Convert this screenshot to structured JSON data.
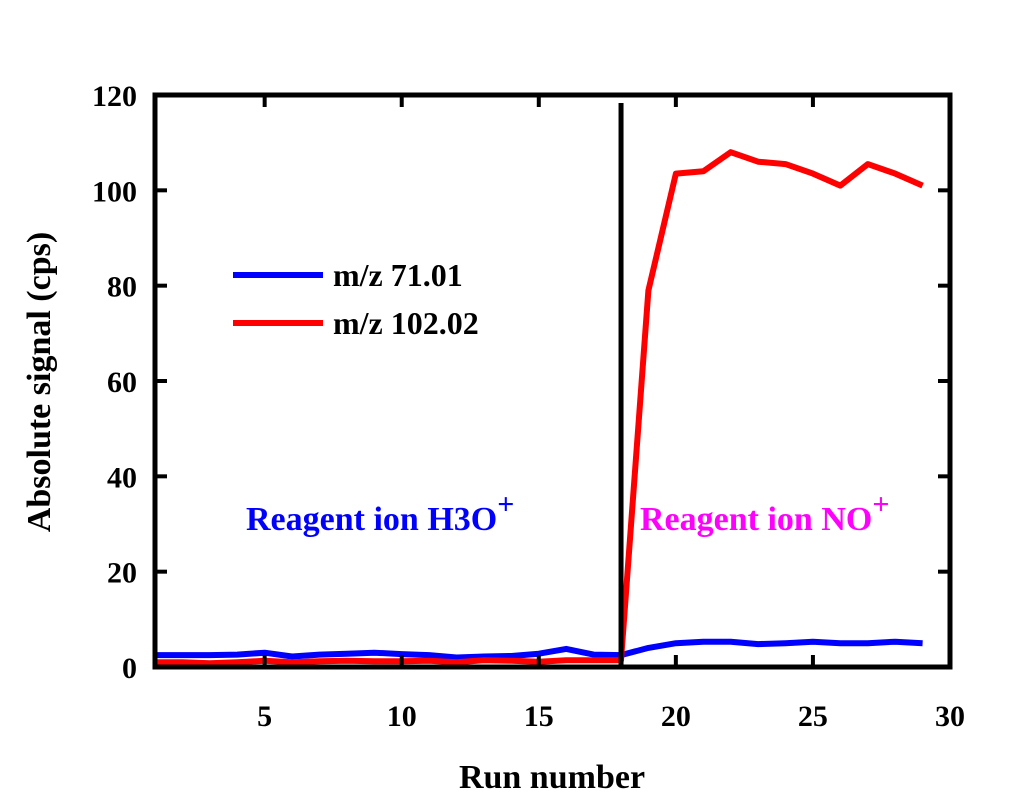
{
  "chart_data": {
    "type": "line",
    "title": "",
    "xlabel": "Run number",
    "ylabel": "Absolute signal (cps)",
    "xlim": [
      1,
      30
    ],
    "ylim": [
      0,
      120
    ],
    "x_ticks": [
      5,
      10,
      15,
      20,
      25,
      30
    ],
    "y_ticks": [
      0,
      20,
      40,
      60,
      80,
      100,
      120
    ],
    "grid": false,
    "legend_position": "upper-left",
    "colors": {
      "series_blue": "#0000ff",
      "series_red": "#ff0000",
      "divider": "#000000",
      "reagent_h3o": "#0000ff",
      "reagent_no": "#ff00ff"
    },
    "x": [
      1,
      2,
      3,
      4,
      5,
      6,
      7,
      8,
      9,
      10,
      11,
      12,
      13,
      14,
      15,
      16,
      17,
      18,
      19,
      20,
      21,
      22,
      23,
      24,
      25,
      26,
      27,
      28,
      29
    ],
    "series": [
      {
        "name": "m/z 71.01",
        "color": "#0000ff",
        "values": [
          2.5,
          2.5,
          2.5,
          2.6,
          3.0,
          2.2,
          2.6,
          2.8,
          3.0,
          2.7,
          2.5,
          2.0,
          2.2,
          2.3,
          2.8,
          3.8,
          2.6,
          2.5,
          4.0,
          5.0,
          5.3,
          5.3,
          4.8,
          5.0,
          5.3,
          5.0,
          5.0,
          5.3,
          5.0
        ]
      },
      {
        "name": "m/z 102.02",
        "color": "#ff0000",
        "values": [
          1.0,
          1.0,
          0.8,
          1.0,
          1.3,
          1.0,
          1.2,
          1.3,
          1.2,
          1.2,
          1.3,
          1.0,
          1.4,
          1.3,
          1.1,
          1.4,
          1.4,
          1.4,
          79.0,
          103.5,
          104.0,
          108.0,
          106.0,
          105.5,
          103.5,
          101.0,
          105.5,
          103.5,
          101.0
        ]
      }
    ],
    "divider_x": 18,
    "annotations": {
      "h3o": {
        "prefix": "Reagent ion H",
        "sub": "3",
        "mid": "O",
        "sup": "+"
      },
      "no": {
        "prefix": "Reagent ion NO",
        "sup": "+"
      }
    }
  }
}
